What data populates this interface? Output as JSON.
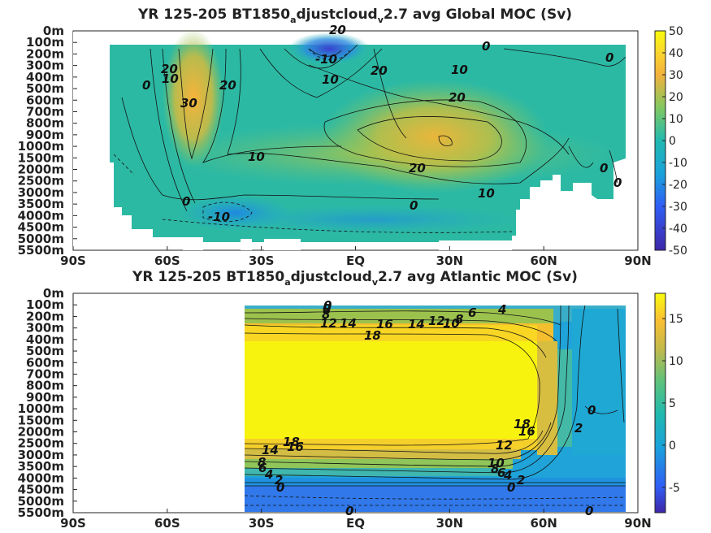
{
  "chart_data": [
    {
      "type": "heatmap",
      "title": "YR 125-205 BT1850",
      "title_sub1": "a",
      "title_mid": "djustcloud",
      "title_sub2": "v",
      "title_end": "2.7 avg  Global MOC (Sv)",
      "x_ticks": [
        "90S",
        "60S",
        "30S",
        "EQ",
        "30N",
        "60N",
        "90N"
      ],
      "y_ticks": [
        "0m",
        "100m",
        "200m",
        "300m",
        "400m",
        "500m",
        "600m",
        "700m",
        "800m",
        "900m",
        "1000m",
        "1500m",
        "2000m",
        "2500m",
        "3000m",
        "3500m",
        "4000m",
        "4500m",
        "5000m",
        "5500m"
      ],
      "colorbar": {
        "min": -50,
        "max": 50,
        "ticks": [
          "50",
          "40",
          "30",
          "20",
          "10",
          "0",
          "-10",
          "-20",
          "-30",
          "-40",
          "-50"
        ]
      },
      "contour_labels": [
        "20",
        "-10",
        "0",
        "20",
        "10",
        "10",
        "20",
        "20",
        "20",
        "0",
        "30",
        "10",
        "0",
        "20",
        "10",
        "0",
        "-10",
        "0",
        "10",
        "0",
        "0"
      ],
      "features": [
        "Deacon cell near 50S (~30 Sv)",
        "subtropical cells near EQ (~-20 Sv)",
        "NH overturning near 30N (~20 Sv)",
        "AABW cell (~-10 Sv)"
      ]
    },
    {
      "type": "heatmap",
      "title": "YR 125-205 BT1850",
      "title_sub1": "a",
      "title_mid": "djustcloud",
      "title_sub2": "v",
      "title_end": "2.7 avg  Atlantic MOC (Sv)",
      "x_ticks": [
        "90S",
        "60S",
        "30S",
        "EQ",
        "30N",
        "60N",
        "90N"
      ],
      "y_ticks": [
        "0m",
        "100m",
        "200m",
        "300m",
        "400m",
        "500m",
        "600m",
        "700m",
        "800m",
        "900m",
        "1000m",
        "1500m",
        "2000m",
        "2500m",
        "3000m",
        "3500m",
        "4000m",
        "4500m",
        "5000m",
        "5500m"
      ],
      "colorbar": {
        "min": -8,
        "max": 18,
        "ticks": [
          "15",
          "10",
          "5",
          "0",
          "-5"
        ]
      },
      "contour_labels": [
        "0",
        "8",
        "12",
        "14",
        "16",
        "14",
        "12",
        "10",
        "8",
        "6",
        "4",
        "18",
        "18",
        "16",
        "18",
        "14",
        "16",
        "12",
        "10",
        "8",
        "6",
        "4",
        "2",
        "8",
        "6",
        "4",
        "2",
        "0",
        "0",
        "0",
        "0",
        "2",
        "0",
        "0"
      ],
      "features": [
        "AMOC cell max ~18 Sv between 500m and 2500m",
        "AABW cell (~-2 Sv) below 4000m"
      ]
    }
  ]
}
